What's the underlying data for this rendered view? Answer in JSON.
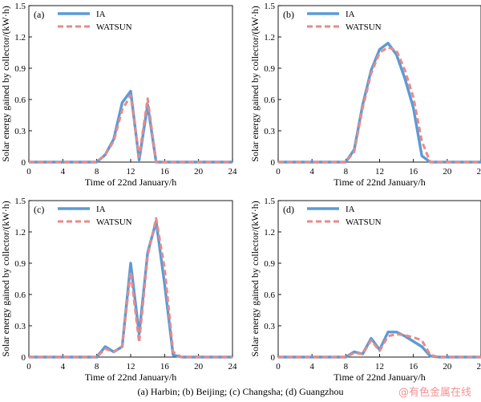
{
  "caption": "(a) Harbin; (b) Beijing; (c) Changsha; (d) Guangzhou",
  "watermark": "@有色金属在线",
  "colors": {
    "ia": "#5b9bd5",
    "watsun": "#e88a8a"
  },
  "chart_data": [
    {
      "type": "line",
      "panel_label": "(a)",
      "xlabel": "Time of 22nd January/h",
      "ylabel": "Solar energy gained by collector/(kW·h)",
      "xlim": [
        0,
        24
      ],
      "ylim": [
        0,
        1.5
      ],
      "x_ticks": [
        0,
        4,
        8,
        12,
        16,
        20,
        24
      ],
      "y_ticks": [
        0,
        0.3,
        0.6,
        0.9,
        1.2,
        1.5
      ],
      "legend_position": "top-left",
      "series": [
        {
          "name": "IA",
          "x": [
            0,
            1,
            2,
            3,
            4,
            5,
            6,
            7,
            8,
            9,
            10,
            11,
            12,
            13,
            14,
            15,
            16,
            17,
            18,
            19,
            20,
            21,
            22,
            23,
            24
          ],
          "values": [
            0,
            0,
            0,
            0,
            0,
            0,
            0,
            0,
            0,
            0.07,
            0.22,
            0.57,
            0.68,
            0.02,
            0.55,
            0,
            0,
            0,
            0,
            0,
            0,
            0,
            0,
            0,
            0
          ]
        },
        {
          "name": "WATSUN",
          "x": [
            0,
            1,
            2,
            3,
            4,
            5,
            6,
            7,
            8,
            9,
            10,
            11,
            12,
            13,
            14,
            15,
            16,
            17,
            18,
            19,
            20,
            21,
            22,
            23,
            24
          ],
          "values": [
            0,
            0,
            0,
            0,
            0,
            0,
            0,
            0,
            0,
            0.07,
            0.2,
            0.5,
            0.64,
            0.05,
            0.61,
            0,
            0,
            0,
            0,
            0,
            0,
            0,
            0,
            0,
            0
          ]
        }
      ]
    },
    {
      "type": "line",
      "panel_label": "(b)",
      "xlabel": "Time of 22nd January/h",
      "ylabel": "Solar energy gained by collector/(kW·h)",
      "xlim": [
        0,
        24
      ],
      "ylim": [
        0,
        1.5
      ],
      "x_ticks": [
        0,
        4,
        8,
        12,
        16,
        20,
        24
      ],
      "y_ticks": [
        0,
        0.3,
        0.6,
        0.9,
        1.2,
        1.5
      ],
      "legend_position": "top-left",
      "series": [
        {
          "name": "IA",
          "x": [
            0,
            1,
            2,
            3,
            4,
            5,
            6,
            7,
            8,
            9,
            10,
            11,
            12,
            13,
            14,
            15,
            16,
            17,
            18,
            19,
            20,
            21,
            22,
            23,
            24
          ],
          "values": [
            0,
            0,
            0,
            0,
            0,
            0,
            0,
            0,
            0,
            0.12,
            0.55,
            0.88,
            1.08,
            1.14,
            1.03,
            0.8,
            0.52,
            0.06,
            0,
            0,
            0,
            0,
            0,
            0,
            0
          ]
        },
        {
          "name": "WATSUN",
          "x": [
            0,
            1,
            2,
            3,
            4,
            5,
            6,
            7,
            8,
            9,
            10,
            11,
            12,
            13,
            14,
            15,
            16,
            17,
            18,
            19,
            20,
            21,
            22,
            23,
            24
          ],
          "values": [
            0,
            0,
            0,
            0,
            0,
            0,
            0,
            0,
            0,
            0.1,
            0.52,
            0.85,
            1.05,
            1.1,
            1.07,
            0.88,
            0.62,
            0.2,
            0,
            0,
            0,
            0,
            0,
            0,
            0
          ]
        }
      ]
    },
    {
      "type": "line",
      "panel_label": "(c)",
      "xlabel": "Time of 22nd January/h",
      "ylabel": "Solar energy gained by collector/(kW·h)",
      "xlim": [
        0,
        24
      ],
      "ylim": [
        0,
        1.5
      ],
      "x_ticks": [
        0,
        4,
        8,
        12,
        16,
        20,
        24
      ],
      "y_ticks": [
        0,
        0.3,
        0.6,
        0.9,
        1.2,
        1.5
      ],
      "legend_position": "top-left",
      "series": [
        {
          "name": "IA",
          "x": [
            0,
            1,
            2,
            3,
            4,
            5,
            6,
            7,
            8,
            9,
            10,
            11,
            12,
            13,
            14,
            15,
            16,
            17,
            18,
            19,
            20,
            21,
            22,
            23,
            24
          ],
          "values": [
            0,
            0,
            0,
            0,
            0,
            0,
            0,
            0,
            0,
            0.1,
            0.05,
            0.1,
            0.9,
            0.22,
            1.0,
            1.3,
            0.7,
            0.02,
            0,
            0,
            0,
            0,
            0,
            0,
            0
          ]
        },
        {
          "name": "WATSUN",
          "x": [
            0,
            1,
            2,
            3,
            4,
            5,
            6,
            7,
            8,
            9,
            10,
            11,
            12,
            13,
            14,
            15,
            16,
            17,
            18,
            19,
            20,
            21,
            22,
            23,
            24
          ],
          "values": [
            0,
            0,
            0,
            0,
            0,
            0,
            0,
            0,
            0,
            0.08,
            0.05,
            0.1,
            0.82,
            0.14,
            0.97,
            1.33,
            0.85,
            0.05,
            0,
            0,
            0,
            0,
            0,
            0,
            0
          ]
        }
      ]
    },
    {
      "type": "line",
      "panel_label": "(d)",
      "xlabel": "Time of 22nd January/h",
      "ylabel": "Solar energy gained by collector/(kW·h)",
      "xlim": [
        0,
        24
      ],
      "ylim": [
        0,
        1.5
      ],
      "x_ticks": [
        0,
        4,
        8,
        12,
        16,
        20,
        24
      ],
      "y_ticks": [
        0,
        0.3,
        0.6,
        0.9,
        1.2,
        1.5
      ],
      "legend_position": "top-left",
      "series": [
        {
          "name": "IA",
          "x": [
            0,
            1,
            2,
            3,
            4,
            5,
            6,
            7,
            8,
            9,
            10,
            11,
            12,
            13,
            14,
            15,
            16,
            17,
            18,
            19,
            20,
            21,
            22,
            23,
            24
          ],
          "values": [
            0,
            0,
            0,
            0,
            0,
            0,
            0,
            0,
            0,
            0.05,
            0.03,
            0.18,
            0.07,
            0.24,
            0.24,
            0.2,
            0.15,
            0.1,
            0.01,
            0,
            0,
            0,
            0,
            0,
            0
          ]
        },
        {
          "name": "WATSUN",
          "x": [
            0,
            1,
            2,
            3,
            4,
            5,
            6,
            7,
            8,
            9,
            10,
            11,
            12,
            13,
            14,
            15,
            16,
            17,
            18,
            19,
            20,
            21,
            22,
            23,
            24
          ],
          "values": [
            0,
            0,
            0,
            0,
            0,
            0,
            0,
            0,
            0,
            0.04,
            0.03,
            0.16,
            0.06,
            0.2,
            0.22,
            0.21,
            0.19,
            0.16,
            0.02,
            0,
            0,
            0,
            0,
            0,
            0
          ]
        }
      ]
    }
  ]
}
